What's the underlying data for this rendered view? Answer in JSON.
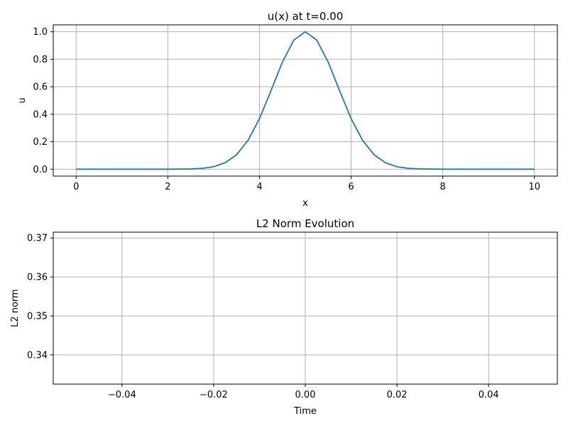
{
  "chart_data": [
    {
      "type": "line",
      "title": "u(x) at t=0.00",
      "xlabel": "x",
      "ylabel": "u",
      "xlim": [
        -0.5,
        10.5
      ],
      "ylim": [
        -0.05,
        1.05
      ],
      "xticks": [
        0,
        2,
        4,
        6,
        8,
        10
      ],
      "xtick_labels": [
        "0",
        "2",
        "4",
        "6",
        "8",
        "10"
      ],
      "yticks": [
        0.0,
        0.2,
        0.4,
        0.6,
        0.8,
        1.0
      ],
      "ytick_labels": [
        "0.0",
        "0.2",
        "0.4",
        "0.6",
        "0.8",
        "1.0"
      ],
      "grid": true,
      "line_color": "#1f77b4",
      "series": [
        {
          "x": [
            0,
            0.5,
            1,
            1.5,
            2,
            2.5,
            2.75,
            3,
            3.25,
            3.5,
            3.75,
            4,
            4.25,
            4.5,
            4.75,
            5,
            5.25,
            5.5,
            5.75,
            6,
            6.25,
            6.5,
            6.75,
            7,
            7.25,
            7.5,
            8,
            8.5,
            9,
            9.5,
            10
          ],
          "y": [
            0.0,
            0.0,
            0.0,
            0.0,
            0.0,
            0.002,
            0.006,
            0.018,
            0.047,
            0.105,
            0.21,
            0.368,
            0.57,
            0.779,
            0.939,
            1.0,
            0.939,
            0.779,
            0.57,
            0.368,
            0.21,
            0.105,
            0.047,
            0.018,
            0.006,
            0.002,
            0.0,
            0.0,
            0.0,
            0.0,
            0.0
          ]
        }
      ]
    },
    {
      "type": "line",
      "title": "L2 Norm Evolution",
      "xlabel": "Time",
      "ylabel": "L2 norm",
      "xlim": [
        -0.055,
        0.055
      ],
      "ylim": [
        0.3325,
        0.3715
      ],
      "xticks": [
        -0.04,
        -0.02,
        0.0,
        0.02,
        0.04
      ],
      "xtick_labels": [
        "−0.04",
        "−0.02",
        "0.00",
        "0.02",
        "0.04"
      ],
      "yticks": [
        0.34,
        0.35,
        0.36,
        0.37
      ],
      "ytick_labels": [
        "0.34",
        "0.35",
        "0.36",
        "0.37"
      ],
      "grid": true,
      "series": []
    }
  ]
}
